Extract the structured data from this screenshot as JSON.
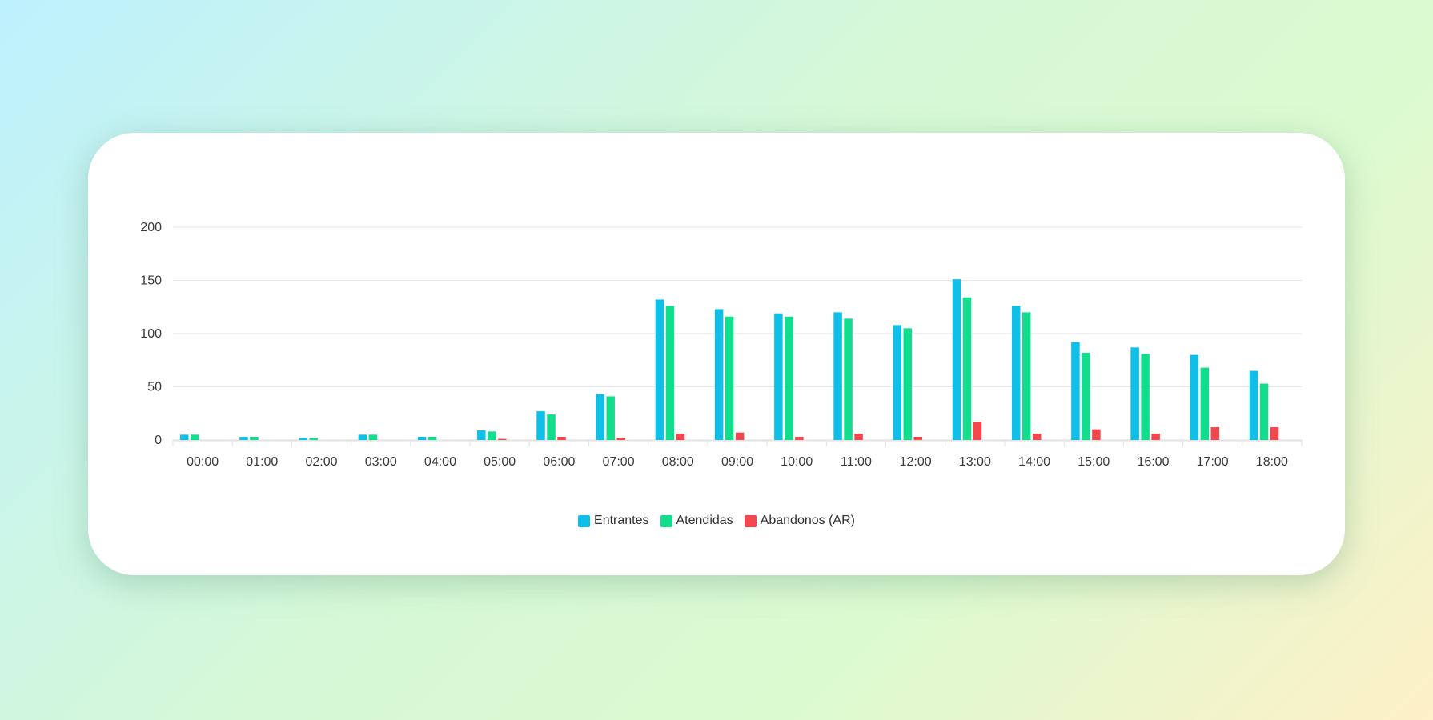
{
  "chart_data": {
    "type": "bar",
    "categories": [
      "00:00",
      "01:00",
      "02:00",
      "03:00",
      "04:00",
      "05:00",
      "06:00",
      "07:00",
      "08:00",
      "09:00",
      "10:00",
      "11:00",
      "12:00",
      "13:00",
      "14:00",
      "15:00",
      "16:00",
      "17:00",
      "18:00"
    ],
    "series": [
      {
        "name": "Entrantes",
        "color": "#0fbfe8",
        "values": [
          5,
          3,
          2,
          5,
          3,
          9,
          27,
          43,
          132,
          123,
          119,
          120,
          108,
          151,
          126,
          92,
          87,
          80,
          65
        ]
      },
      {
        "name": "Atendidas",
        "color": "#11dd8c",
        "values": [
          5,
          3,
          2,
          5,
          3,
          8,
          24,
          41,
          126,
          116,
          116,
          114,
          105,
          134,
          120,
          82,
          81,
          68,
          53
        ]
      },
      {
        "name": "Abandonos (AR)",
        "color": "#f2474c",
        "values": [
          0,
          0,
          0,
          0,
          0,
          1,
          3,
          2,
          6,
          7,
          3,
          6,
          3,
          17,
          6,
          10,
          6,
          12,
          12
        ]
      }
    ],
    "yticks": [
      0,
      50,
      100,
      150,
      200
    ],
    "ylim": [
      0,
      200
    ],
    "grid": true,
    "legend_position": "bottom-center"
  }
}
